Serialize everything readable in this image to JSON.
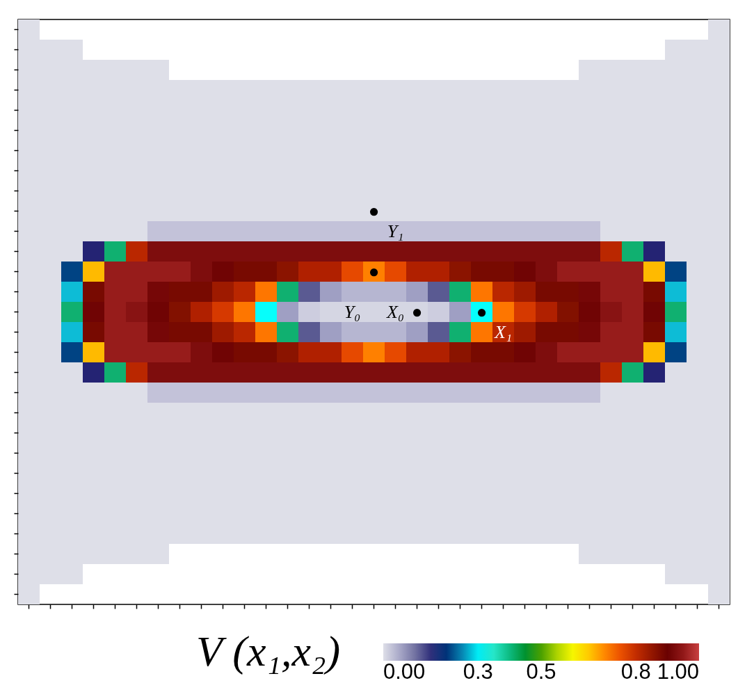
{
  "chart_data": {
    "type": "heatmap",
    "categories": [
      null,
      null,
      null,
      null,
      null,
      null,
      null,
      null,
      null,
      null,
      null,
      null,
      null,
      null,
      null,
      null,
      null,
      null,
      null,
      null,
      null,
      null,
      null,
      null,
      null,
      null,
      null,
      null,
      null,
      null,
      null,
      null,
      null
    ],
    "y_categories": [
      null,
      null,
      null,
      null,
      null,
      null,
      null,
      null,
      null,
      null,
      null,
      null,
      null,
      null,
      null,
      null,
      null,
      null,
      null,
      null,
      null,
      null,
      null,
      null,
      null,
      null,
      null,
      null,
      null
    ],
    "cells": [
      [
        0,
        null,
        null,
        null,
        null,
        null,
        null,
        null,
        null,
        null,
        null,
        null,
        null,
        null,
        null,
        null,
        null,
        null,
        null,
        null,
        null,
        null,
        null,
        null,
        null,
        null,
        null,
        null,
        null,
        null,
        null,
        null,
        0
      ],
      [
        0,
        0,
        0,
        null,
        null,
        null,
        null,
        null,
        null,
        null,
        null,
        null,
        null,
        null,
        null,
        null,
        null,
        null,
        null,
        null,
        null,
        null,
        null,
        null,
        null,
        null,
        null,
        null,
        null,
        null,
        0,
        0,
        0
      ],
      [
        0,
        0,
        0,
        0,
        0,
        0,
        0,
        null,
        null,
        null,
        null,
        null,
        null,
        null,
        null,
        null,
        null,
        null,
        null,
        null,
        null,
        null,
        null,
        null,
        null,
        null,
        0,
        0,
        0,
        0,
        0,
        0,
        0
      ],
      [
        0,
        0,
        0,
        0,
        0,
        0,
        0,
        0,
        0,
        0,
        0,
        0,
        0,
        0,
        0,
        0,
        0,
        0,
        0,
        0,
        0,
        0,
        0,
        0,
        0,
        0,
        0,
        0,
        0,
        0,
        0,
        0,
        0
      ],
      [
        0,
        0,
        0,
        0,
        0,
        0,
        0,
        0,
        0,
        0,
        0,
        0,
        0,
        0,
        0,
        0,
        0,
        0,
        0,
        0,
        0,
        0,
        0,
        0,
        0,
        0,
        0,
        0,
        0,
        0,
        0,
        0,
        0
      ],
      [
        0,
        0,
        0,
        0,
        0,
        0,
        0,
        0,
        0,
        0,
        0,
        0,
        0,
        0,
        0,
        0,
        0,
        0,
        0,
        0,
        0,
        0,
        0,
        0,
        0,
        0,
        0,
        0,
        0,
        0,
        0,
        0,
        0
      ],
      [
        0,
        0,
        0,
        0,
        0,
        0,
        0,
        0,
        0,
        0,
        0,
        0,
        0,
        0,
        0,
        0,
        0,
        0,
        0,
        0,
        0,
        0,
        0,
        0,
        0,
        0,
        0,
        0,
        0,
        0,
        0,
        0,
        0
      ],
      [
        0,
        0,
        0,
        0,
        0,
        0,
        0,
        0,
        0,
        0,
        0,
        0,
        0,
        0,
        0,
        0,
        0,
        0,
        0,
        0,
        0,
        0,
        0,
        0,
        0,
        0,
        0,
        0,
        0,
        0,
        0,
        0,
        0
      ],
      [
        0,
        0,
        0,
        0,
        0,
        0,
        0,
        0,
        0,
        0,
        0,
        0,
        0,
        0,
        0,
        0,
        0,
        0,
        0,
        0,
        0,
        0,
        0,
        0,
        0,
        0,
        0,
        0,
        0,
        0,
        0,
        0,
        0
      ],
      [
        0,
        0,
        0,
        0,
        0,
        0,
        0,
        0,
        0,
        0,
        0,
        0,
        0,
        0,
        0,
        0,
        0,
        0,
        0,
        0,
        0,
        0,
        0,
        0,
        0,
        0,
        0,
        0,
        0,
        0,
        0,
        0,
        0
      ],
      [
        0,
        0,
        0,
        0,
        0,
        0,
        0.03,
        0.03,
        0.03,
        0.03,
        0.03,
        0.03,
        0.03,
        0.03,
        0.03,
        0.03,
        0.03,
        0.03,
        0.03,
        0.03,
        0.03,
        0.03,
        0.03,
        0.03,
        0.03,
        0.03,
        0.03,
        0,
        0,
        0,
        0,
        0,
        0
      ],
      [
        0,
        0,
        0,
        0.16,
        0.41,
        0.81,
        0.93,
        0.93,
        0.93,
        0.93,
        0.93,
        0.93,
        0.93,
        0.93,
        0.93,
        0.93,
        0.93,
        0.93,
        0.93,
        0.93,
        0.93,
        0.93,
        0.93,
        0.93,
        0.93,
        0.93,
        0.93,
        0.81,
        0.41,
        0.16,
        0,
        0,
        0
      ],
      [
        0,
        0,
        0.21,
        0.66,
        0.96,
        0.96,
        0.96,
        0.96,
        0.93,
        0.91,
        0.88,
        0.88,
        0.86,
        0.82,
        0.82,
        0.76,
        0.71,
        0.76,
        0.82,
        0.82,
        0.86,
        0.88,
        0.88,
        0.91,
        0.93,
        0.96,
        0.96,
        0.96,
        0.96,
        0.66,
        0.21,
        0,
        0
      ],
      [
        0,
        0,
        0.28,
        0.88,
        0.96,
        0.96,
        0.92,
        0.88,
        0.88,
        0.84,
        0.81,
        0.72,
        0.41,
        0.12,
        0.06,
        0.04,
        0.04,
        0.04,
        0.06,
        0.12,
        0.41,
        0.72,
        0.81,
        0.84,
        0.88,
        0.88,
        0.92,
        0.96,
        0.96,
        0.88,
        0.28,
        0,
        0
      ],
      [
        0,
        0,
        0.41,
        0.91,
        0.96,
        0.94,
        0.91,
        0.87,
        0.82,
        0.78,
        0.72,
        0.31,
        0.06,
        0.02,
        0.01,
        0.01,
        0.01,
        0.01,
        0.01,
        0.02,
        0.06,
        0.31,
        0.72,
        0.78,
        0.82,
        0.87,
        0.91,
        0.94,
        0.96,
        0.91,
        0.41,
        0,
        0
      ],
      [
        0,
        0,
        0.28,
        0.88,
        0.96,
        0.96,
        0.92,
        0.88,
        0.88,
        0.84,
        0.81,
        0.72,
        0.41,
        0.12,
        0.06,
        0.04,
        0.04,
        0.04,
        0.06,
        0.12,
        0.41,
        0.72,
        0.81,
        0.84,
        0.88,
        0.88,
        0.92,
        0.96,
        0.96,
        0.88,
        0.28,
        0,
        0
      ],
      [
        0,
        0,
        0.21,
        0.66,
        0.96,
        0.96,
        0.96,
        0.96,
        0.93,
        0.91,
        0.88,
        0.88,
        0.86,
        0.82,
        0.82,
        0.76,
        0.71,
        0.76,
        0.82,
        0.82,
        0.86,
        0.88,
        0.88,
        0.91,
        0.93,
        0.96,
        0.96,
        0.96,
        0.96,
        0.66,
        0.21,
        0,
        0
      ],
      [
        0,
        0,
        0,
        0.16,
        0.41,
        0.81,
        0.93,
        0.93,
        0.93,
        0.93,
        0.93,
        0.93,
        0.93,
        0.93,
        0.93,
        0.93,
        0.93,
        0.93,
        0.93,
        0.93,
        0.93,
        0.93,
        0.93,
        0.93,
        0.93,
        0.93,
        0.93,
        0.81,
        0.41,
        0.16,
        0,
        0,
        0
      ],
      [
        0,
        0,
        0,
        0,
        0,
        0,
        0.03,
        0.03,
        0.03,
        0.03,
        0.03,
        0.03,
        0.03,
        0.03,
        0.03,
        0.03,
        0.03,
        0.03,
        0.03,
        0.03,
        0.03,
        0.03,
        0.03,
        0.03,
        0.03,
        0.03,
        0.03,
        0,
        0,
        0,
        0,
        0,
        0
      ],
      [
        0,
        0,
        0,
        0,
        0,
        0,
        0,
        0,
        0,
        0,
        0,
        0,
        0,
        0,
        0,
        0,
        0,
        0,
        0,
        0,
        0,
        0,
        0,
        0,
        0,
        0,
        0,
        0,
        0,
        0,
        0,
        0,
        0
      ],
      [
        0,
        0,
        0,
        0,
        0,
        0,
        0,
        0,
        0,
        0,
        0,
        0,
        0,
        0,
        0,
        0,
        0,
        0,
        0,
        0,
        0,
        0,
        0,
        0,
        0,
        0,
        0,
        0,
        0,
        0,
        0,
        0,
        0
      ],
      [
        0,
        0,
        0,
        0,
        0,
        0,
        0,
        0,
        0,
        0,
        0,
        0,
        0,
        0,
        0,
        0,
        0,
        0,
        0,
        0,
        0,
        0,
        0,
        0,
        0,
        0,
        0,
        0,
        0,
        0,
        0,
        0,
        0
      ],
      [
        0,
        0,
        0,
        0,
        0,
        0,
        0,
        0,
        0,
        0,
        0,
        0,
        0,
        0,
        0,
        0,
        0,
        0,
        0,
        0,
        0,
        0,
        0,
        0,
        0,
        0,
        0,
        0,
        0,
        0,
        0,
        0,
        0
      ],
      [
        0,
        0,
        0,
        0,
        0,
        0,
        0,
        0,
        0,
        0,
        0,
        0,
        0,
        0,
        0,
        0,
        0,
        0,
        0,
        0,
        0,
        0,
        0,
        0,
        0,
        0,
        0,
        0,
        0,
        0,
        0,
        0,
        0
      ],
      [
        0,
        0,
        0,
        0,
        0,
        0,
        0,
        0,
        0,
        0,
        0,
        0,
        0,
        0,
        0,
        0,
        0,
        0,
        0,
        0,
        0,
        0,
        0,
        0,
        0,
        0,
        0,
        0,
        0,
        0,
        0,
        0,
        0
      ],
      [
        0,
        0,
        0,
        0,
        0,
        0,
        0,
        0,
        0,
        0,
        0,
        0,
        0,
        0,
        0,
        0,
        0,
        0,
        0,
        0,
        0,
        0,
        0,
        0,
        0,
        0,
        0,
        0,
        0,
        0,
        0,
        0,
        0
      ],
      [
        0,
        0,
        0,
        0,
        0,
        0,
        0,
        null,
        null,
        null,
        null,
        null,
        null,
        null,
        null,
        null,
        null,
        null,
        null,
        null,
        null,
        null,
        null,
        null,
        null,
        null,
        0,
        0,
        0,
        0,
        0,
        0,
        0
      ],
      [
        0,
        0,
        0,
        null,
        null,
        null,
        null,
        null,
        null,
        null,
        null,
        null,
        null,
        null,
        null,
        null,
        null,
        null,
        null,
        null,
        null,
        null,
        null,
        null,
        null,
        null,
        null,
        null,
        null,
        null,
        0,
        0,
        0
      ],
      [
        0,
        null,
        null,
        null,
        null,
        null,
        null,
        null,
        null,
        null,
        null,
        null,
        null,
        null,
        null,
        null,
        null,
        null,
        null,
        null,
        null,
        null,
        null,
        null,
        null,
        null,
        null,
        null,
        null,
        null,
        null,
        null,
        0
      ]
    ],
    "cell_labels": [
      [
        null,
        null,
        null,
        null,
        null,
        null,
        null,
        null,
        null,
        null,
        null,
        null,
        null,
        null,
        null,
        null,
        null,
        null,
        null,
        null,
        null,
        null,
        null,
        null,
        null,
        null,
        null,
        null,
        null,
        null,
        null,
        null,
        null
      ],
      [
        null,
        null,
        null,
        null,
        null,
        null,
        null,
        null,
        null,
        null,
        null,
        null,
        null,
        null,
        null,
        null,
        null,
        null,
        null,
        null,
        null,
        null,
        null,
        null,
        null,
        null,
        null,
        null,
        null,
        null,
        null,
        null,
        null
      ],
      [
        null,
        null,
        null,
        null,
        null,
        null,
        null,
        null,
        null,
        null,
        null,
        null,
        null,
        null,
        null,
        null,
        null,
        null,
        null,
        null,
        null,
        null,
        null,
        null,
        null,
        null,
        null,
        null,
        null,
        null,
        null,
        null,
        null
      ],
      [
        null,
        null,
        null,
        null,
        null,
        null,
        null,
        null,
        null,
        null,
        null,
        null,
        null,
        null,
        null,
        null,
        null,
        null,
        null,
        null,
        null,
        null,
        null,
        null,
        null,
        null,
        null,
        null,
        null,
        null,
        null,
        null,
        null
      ],
      [
        null,
        null,
        null,
        null,
        null,
        null,
        null,
        null,
        null,
        null,
        null,
        null,
        null,
        null,
        null,
        null,
        null,
        null,
        null,
        null,
        null,
        null,
        null,
        null,
        null,
        null,
        null,
        null,
        null,
        null,
        null,
        null,
        null
      ],
      [
        null,
        null,
        null,
        null,
        null,
        null,
        null,
        null,
        null,
        null,
        null,
        null,
        null,
        null,
        null,
        null,
        null,
        null,
        null,
        null,
        null,
        null,
        null,
        null,
        null,
        null,
        null,
        null,
        null,
        null,
        null,
        null,
        null
      ],
      [
        null,
        null,
        null,
        null,
        null,
        null,
        null,
        null,
        null,
        null,
        null,
        null,
        null,
        null,
        null,
        null,
        null,
        null,
        null,
        null,
        null,
        null,
        null,
        null,
        null,
        null,
        null,
        null,
        null,
        null,
        null,
        null,
        null
      ],
      [
        null,
        null,
        null,
        null,
        null,
        null,
        null,
        null,
        null,
        null,
        null,
        null,
        null,
        null,
        null,
        null,
        null,
        null,
        null,
        null,
        null,
        null,
        null,
        null,
        null,
        null,
        null,
        null,
        null,
        null,
        null,
        null,
        null
      ],
      [
        null,
        null,
        null,
        null,
        null,
        null,
        null,
        null,
        null,
        null,
        null,
        null,
        null,
        null,
        null,
        null,
        null,
        null,
        null,
        null,
        null,
        null,
        null,
        null,
        null,
        null,
        null,
        null,
        null,
        null,
        null,
        null,
        null
      ],
      [
        null,
        null,
        null,
        null,
        null,
        null,
        null,
        null,
        null,
        null,
        null,
        null,
        null,
        null,
        null,
        null,
        "●",
        null,
        null,
        null,
        null,
        null,
        null,
        null,
        null,
        null,
        null,
        null,
        null,
        null,
        null,
        null,
        null
      ],
      [
        null,
        null,
        null,
        null,
        null,
        null,
        null,
        null,
        null,
        null,
        null,
        null,
        null,
        null,
        null,
        null,
        null,
        "Y₁",
        null,
        null,
        null,
        null,
        null,
        null,
        null,
        null,
        null,
        null,
        null,
        null,
        null,
        null,
        null
      ],
      [
        null,
        null,
        null,
        null,
        null,
        null,
        null,
        null,
        null,
        null,
        null,
        null,
        null,
        null,
        null,
        null,
        null,
        null,
        null,
        null,
        null,
        null,
        null,
        null,
        null,
        null,
        null,
        null,
        null,
        null,
        null,
        null,
        null
      ],
      [
        null,
        null,
        null,
        null,
        null,
        null,
        null,
        null,
        null,
        null,
        null,
        null,
        null,
        null,
        null,
        null,
        "●",
        null,
        null,
        null,
        null,
        null,
        null,
        null,
        null,
        null,
        null,
        null,
        null,
        null,
        null,
        null,
        null
      ],
      [
        null,
        null,
        null,
        null,
        null,
        null,
        null,
        null,
        null,
        null,
        null,
        null,
        null,
        null,
        null,
        null,
        null,
        null,
        null,
        null,
        null,
        null,
        null,
        null,
        null,
        null,
        null,
        null,
        null,
        null,
        null,
        null,
        null
      ],
      [
        null,
        null,
        null,
        null,
        null,
        null,
        null,
        null,
        null,
        null,
        null,
        null,
        null,
        null,
        null,
        "Y₀",
        null,
        "X₀",
        "●",
        null,
        null,
        "●",
        null,
        null,
        null,
        null,
        null,
        null,
        null,
        null,
        null,
        null,
        null
      ],
      [
        null,
        null,
        null,
        null,
        null,
        null,
        null,
        null,
        null,
        null,
        null,
        null,
        null,
        null,
        null,
        null,
        null,
        null,
        null,
        null,
        null,
        null,
        "X₁",
        null,
        null,
        null,
        null,
        null,
        null,
        null,
        null,
        null,
        null
      ],
      [
        null,
        null,
        null,
        null,
        null,
        null,
        null,
        null,
        null,
        null,
        null,
        null,
        null,
        null,
        null,
        null,
        null,
        null,
        null,
        null,
        null,
        null,
        null,
        null,
        null,
        null,
        null,
        null,
        null,
        null,
        null,
        null,
        null
      ],
      [
        null,
        null,
        null,
        null,
        null,
        null,
        null,
        null,
        null,
        null,
        null,
        null,
        null,
        null,
        null,
        null,
        null,
        null,
        null,
        null,
        null,
        null,
        null,
        null,
        null,
        null,
        null,
        null,
        null,
        null,
        null,
        null,
        null
      ],
      [
        null,
        null,
        null,
        null,
        null,
        null,
        null,
        null,
        null,
        null,
        null,
        null,
        null,
        null,
        null,
        null,
        null,
        null,
        null,
        null,
        null,
        null,
        null,
        null,
        null,
        null,
        null,
        null,
        null,
        null,
        null,
        null,
        null
      ],
      [
        null,
        null,
        null,
        null,
        null,
        null,
        null,
        null,
        null,
        null,
        null,
        null,
        null,
        null,
        null,
        null,
        null,
        null,
        null,
        null,
        null,
        null,
        null,
        null,
        null,
        null,
        null,
        null,
        null,
        null,
        null,
        null,
        null
      ],
      [
        null,
        null,
        null,
        null,
        null,
        null,
        null,
        null,
        null,
        null,
        null,
        null,
        null,
        null,
        null,
        null,
        null,
        null,
        null,
        null,
        null,
        null,
        null,
        null,
        null,
        null,
        null,
        null,
        null,
        null,
        null,
        null,
        null
      ],
      [
        null,
        null,
        null,
        null,
        null,
        null,
        null,
        null,
        null,
        null,
        null,
        null,
        null,
        null,
        null,
        null,
        null,
        null,
        null,
        null,
        null,
        null,
        null,
        null,
        null,
        null,
        null,
        null,
        null,
        null,
        null,
        null,
        null
      ],
      [
        null,
        null,
        null,
        null,
        null,
        null,
        null,
        null,
        null,
        null,
        null,
        null,
        null,
        null,
        null,
        null,
        null,
        null,
        null,
        null,
        null,
        null,
        null,
        null,
        null,
        null,
        null,
        null,
        null,
        null,
        null,
        null,
        null
      ],
      [
        null,
        null,
        null,
        null,
        null,
        null,
        null,
        null,
        null,
        null,
        null,
        null,
        null,
        null,
        null,
        null,
        null,
        null,
        null,
        null,
        null,
        null,
        null,
        null,
        null,
        null,
        null,
        null,
        null,
        null,
        null,
        null,
        null
      ],
      [
        null,
        null,
        null,
        null,
        null,
        null,
        null,
        null,
        null,
        null,
        null,
        null,
        null,
        null,
        null,
        null,
        null,
        null,
        null,
        null,
        null,
        null,
        null,
        null,
        null,
        null,
        null,
        null,
        null,
        null,
        null,
        null,
        null
      ],
      [
        null,
        null,
        null,
        null,
        null,
        null,
        null,
        null,
        null,
        null,
        null,
        null,
        null,
        null,
        null,
        null,
        null,
        null,
        null,
        null,
        null,
        null,
        null,
        null,
        null,
        null,
        null,
        null,
        null,
        null,
        null,
        null,
        null
      ],
      [
        null,
        null,
        null,
        null,
        null,
        null,
        null,
        null,
        null,
        null,
        null,
        null,
        null,
        null,
        null,
        null,
        null,
        null,
        null,
        null,
        null,
        null,
        null,
        null,
        null,
        null,
        null,
        null,
        null,
        null,
        null,
        null,
        null
      ],
      [
        null,
        null,
        null,
        null,
        null,
        null,
        null,
        null,
        null,
        null,
        null,
        null,
        null,
        null,
        null,
        null,
        null,
        null,
        null,
        null,
        null,
        null,
        null,
        null,
        null,
        null,
        null,
        null,
        null,
        null,
        null,
        null,
        null
      ],
      [
        null,
        null,
        null,
        null,
        null,
        null,
        null,
        null,
        null,
        null,
        null,
        null,
        null,
        null,
        null,
        null,
        null,
        null,
        null,
        null,
        null,
        null,
        null,
        null,
        null,
        null,
        null,
        null,
        null,
        null,
        null,
        null,
        null
      ]
    ],
    "clabel": "V (x₁,x₂)",
    "clim": [
      0,
      1
    ],
    "cticks": [
      {
        "value": 0,
        "label": "0.00"
      },
      0.3,
      0.5,
      0.8,
      {
        "value": 1,
        "label": "1.00"
      }
    ]
  }
}
